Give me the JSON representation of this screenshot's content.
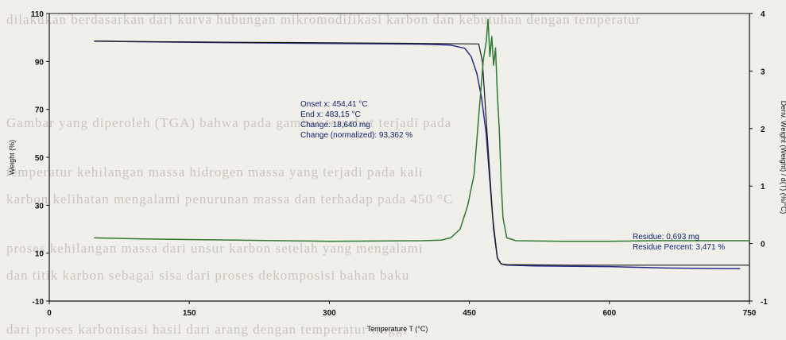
{
  "chart_data": {
    "type": "line",
    "title": "",
    "xlabel": "Temperature T (°C)",
    "ylabel_left": "Weight (%)",
    "ylabel_right": "Deriv. Weight (Weight) / d(T) (%/°C)",
    "xlim": [
      0,
      750
    ],
    "ylim_left": [
      -10,
      110
    ],
    "ylim_right": [
      -1,
      4
    ],
    "x_ticks": [
      "0",
      "150",
      "300",
      "450",
      "600",
      "750"
    ],
    "y_left_ticks": [
      "-10",
      "10",
      "30",
      "50",
      "70",
      "90",
      "110"
    ],
    "y_right_ticks": [
      "-1",
      "0",
      "1",
      "2",
      "3",
      "4"
    ],
    "grid": false,
    "series": [
      {
        "name": "",
        "axis": "left",
        "color": "#2a2a8c",
        "x": [
          48,
          100,
          200,
          300,
          400,
          430,
          445,
          452,
          458,
          463,
          468,
          472,
          476,
          480,
          484,
          490,
          520,
          600,
          660,
          740
        ],
        "y": [
          98.5,
          98.2,
          97.8,
          97.5,
          97.2,
          96.8,
          95.5,
          92,
          85,
          75,
          60,
          40,
          20,
          8,
          5.5,
          5,
          4.7,
          4.4,
          3.8,
          3.5
        ]
      },
      {
        "name": "",
        "axis": "left",
        "color": "#1a1a1a",
        "x": [
          48,
          100,
          200,
          300,
          400,
          460,
          464,
          469,
          475,
          480,
          484,
          490,
          560,
          650,
          750
        ],
        "y": [
          98.5,
          98.3,
          98,
          97.8,
          97.5,
          97.3,
          90,
          60,
          25,
          8,
          5.5,
          5.2,
          5,
          5,
          5
        ]
      },
      {
        "name": "",
        "axis": "right",
        "color": "#2f7a33",
        "x": [
          48,
          100,
          200,
          300,
          400,
          420,
          430,
          440,
          448,
          455,
          460,
          465,
          468,
          470,
          472,
          474,
          476,
          478,
          480,
          482,
          484,
          486,
          490,
          500,
          550,
          600,
          650,
          700,
          750
        ],
        "y": [
          0.1,
          0.08,
          0.06,
          0.04,
          0.05,
          0.06,
          0.1,
          0.25,
          0.65,
          1.2,
          2.2,
          3.2,
          3.5,
          3.9,
          3.25,
          3.6,
          3.1,
          3.4,
          2.6,
          2.0,
          1.1,
          0.45,
          0.1,
          0.05,
          0.04,
          0.04,
          0.05,
          0.05,
          0.05
        ]
      }
    ],
    "annotations": {
      "onset": "Onset x: 454,41 °C",
      "end": "End x: 483,15 °C",
      "change": "Change: 18,640 mg",
      "change_norm": "Change (normalized): 93,362 %",
      "residue": "Residue: 0,693 mg",
      "residue_percent": "Residue Percent: 3,471 %"
    }
  },
  "background_text": {
    "line1": "dilakukan berdasarkan dari kurva hubungan mikromodifikasi karbon dan kebutuhan dengan temperatur",
    "line2": "Gambar yang diperoleh (TGA) bahwa pada gambar tersebut terjadi pada",
    "line3": "temperatur kehilangan massa hidrogen massa yang terjadi pada kali",
    "line4": "karbon kelihatan mengalami penurunan massa dan terhadap pada 450 °C",
    "line5": "proses kehilangan massa dari unsur karbon setelah yang mengalami",
    "line6": "dan titik karbon sebagai sisa dari proses dekomposisi bahan baku",
    "line7": "dari proses karbonisasi hasil dari arang dengan temperatur tinggi"
  }
}
